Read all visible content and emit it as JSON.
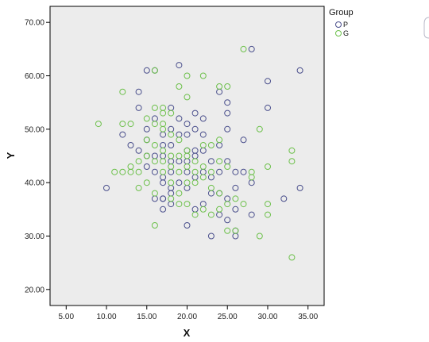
{
  "chart_data": {
    "type": "scatter",
    "title": "",
    "xlabel": "X",
    "ylabel": "Y",
    "xlim": [
      3.0,
      37.0
    ],
    "ylim": [
      17.0,
      73.0
    ],
    "xticks": [
      5,
      10,
      15,
      20,
      25,
      30,
      35
    ],
    "yticks": [
      20,
      30,
      40,
      50,
      60,
      70
    ],
    "xtick_labels": [
      "5.00",
      "10.00",
      "15.00",
      "20.00",
      "25.00",
      "30.00",
      "35.00"
    ],
    "ytick_labels": [
      "20.00",
      "30.00",
      "40.00",
      "50.00",
      "60.00",
      "70.00"
    ],
    "grid": false,
    "legend": {
      "title": "Group",
      "position": "top-right"
    },
    "colors": {
      "plot_bg": "#ececec",
      "P": "#4a4f8c",
      "G": "#6cc04a"
    },
    "series": [
      {
        "name": "P",
        "x": [
          10,
          12,
          13,
          14,
          14,
          14,
          15,
          15,
          15,
          15,
          15,
          16,
          16,
          16,
          16,
          16,
          17,
          17,
          17,
          17,
          17,
          17,
          17,
          17,
          18,
          18,
          18,
          18,
          18,
          18,
          18,
          18,
          19,
          19,
          19,
          19,
          19,
          20,
          20,
          20,
          20,
          20,
          20,
          20,
          21,
          21,
          21,
          21,
          21,
          21,
          22,
          22,
          22,
          22,
          22,
          23,
          23,
          23,
          23,
          24,
          24,
          24,
          24,
          24,
          25,
          25,
          25,
          25,
          25,
          25,
          26,
          26,
          26,
          26,
          26,
          27,
          27,
          28,
          28,
          28,
          30,
          30,
          32,
          34,
          34
        ],
        "y": [
          39,
          49,
          47,
          57,
          54,
          46,
          61,
          50,
          48,
          45,
          43,
          61,
          52,
          45,
          42,
          37,
          49,
          47,
          45,
          41,
          40,
          37,
          35,
          37,
          54,
          50,
          47,
          44,
          42,
          39,
          38,
          36,
          62,
          52,
          49,
          44,
          40,
          51,
          49,
          46,
          44,
          42,
          39,
          32,
          53,
          50,
          46,
          45,
          41,
          35,
          52,
          49,
          46,
          42,
          36,
          44,
          41,
          38,
          30,
          57,
          47,
          42,
          38,
          34,
          55,
          53,
          50,
          44,
          37,
          33,
          42,
          39,
          35,
          31,
          30,
          48,
          42,
          65,
          40,
          34,
          59,
          54,
          37,
          61,
          39
        ]
      },
      {
        "name": "G",
        "x": [
          9,
          11,
          12,
          12,
          12,
          13,
          13,
          13,
          14,
          14,
          14,
          15,
          15,
          15,
          15,
          16,
          16,
          16,
          16,
          16,
          16,
          16,
          17,
          17,
          17,
          17,
          17,
          17,
          17,
          18,
          18,
          18,
          18,
          18,
          18,
          19,
          19,
          19,
          19,
          19,
          19,
          20,
          20,
          20,
          20,
          20,
          20,
          20,
          21,
          21,
          21,
          21,
          22,
          22,
          22,
          22,
          22,
          23,
          23,
          23,
          23,
          24,
          24,
          24,
          24,
          24,
          25,
          25,
          25,
          25,
          26,
          26,
          27,
          27,
          28,
          28,
          29,
          29,
          30,
          30,
          30,
          33,
          33,
          33
        ],
        "y": [
          51,
          42,
          57,
          51,
          42,
          51,
          43,
          42,
          44,
          42,
          39,
          52,
          48,
          45,
          40,
          61,
          54,
          51,
          47,
          44,
          38,
          32,
          54,
          53,
          51,
          50,
          46,
          44,
          42,
          53,
          49,
          45,
          43,
          40,
          37,
          58,
          48,
          45,
          42,
          38,
          36,
          60,
          56,
          46,
          45,
          43,
          40,
          36,
          44,
          42,
          40,
          34,
          60,
          47,
          43,
          41,
          35,
          47,
          42,
          39,
          34,
          58,
          48,
          44,
          38,
          35,
          58,
          43,
          36,
          31,
          37,
          31,
          65,
          36,
          42,
          41,
          50,
          30,
          43,
          36,
          34,
          46,
          44,
          26
        ]
      }
    ]
  }
}
